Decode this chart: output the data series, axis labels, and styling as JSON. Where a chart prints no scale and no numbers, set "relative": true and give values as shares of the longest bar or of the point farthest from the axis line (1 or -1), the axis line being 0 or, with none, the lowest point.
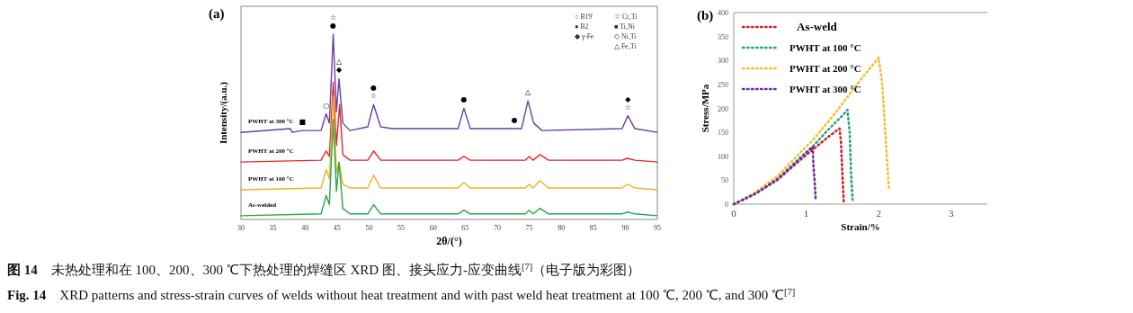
{
  "chart_data": [
    {
      "type": "line",
      "title": "(a)",
      "xlabel": "2θ/(°)",
      "ylabel": "Intensity/(a.u.)",
      "relative": true,
      "xlim": [
        30,
        95
      ],
      "xticks": [
        30,
        35,
        40,
        45,
        50,
        55,
        60,
        65,
        70,
        75,
        80,
        85,
        90,
        95
      ],
      "line_style": "solid",
      "marker": "none",
      "series": [
        {
          "name": "PWHT at 300 °C",
          "color": "#6a3fa0",
          "x": [
            30,
            37.7,
            38,
            39.6,
            42.5,
            43.3,
            43.8,
            44.4,
            44.9,
            45.3,
            45.9,
            47,
            49.8,
            50.7,
            51.8,
            53.6,
            63.9,
            64.8,
            65.8,
            72.7,
            73.8,
            74.8,
            75.7,
            77,
            89.5,
            90.4,
            91.5,
            95
          ],
          "values": [
            0.47,
            0.49,
            0.47,
            0.48,
            0.48,
            0.57,
            0.52,
            1.0,
            0.58,
            0.76,
            0.52,
            0.48,
            0.5,
            0.62,
            0.5,
            0.49,
            0.49,
            0.6,
            0.49,
            0.49,
            0.49,
            0.64,
            0.52,
            0.48,
            0.49,
            0.56,
            0.49,
            0.47
          ]
        },
        {
          "name": "PWHT at 200 °C",
          "color": "#e8262b",
          "x": [
            30,
            42.5,
            43.3,
            43.8,
            44.4,
            44.9,
            45.4,
            45.9,
            47,
            49.8,
            50.7,
            51.8,
            63.9,
            64.8,
            65.8,
            74.4,
            75,
            75.6,
            76.7,
            78,
            89.5,
            90.3,
            91.5,
            95
          ],
          "values": [
            0.31,
            0.32,
            0.37,
            0.34,
            0.74,
            0.4,
            0.62,
            0.35,
            0.32,
            0.32,
            0.37,
            0.32,
            0.32,
            0.34,
            0.32,
            0.32,
            0.34,
            0.32,
            0.35,
            0.32,
            0.32,
            0.33,
            0.32,
            0.31
          ]
        },
        {
          "name": "PWHT at 100 °C",
          "color": "#f5b022",
          "x": [
            30,
            42.5,
            43.3,
            43.8,
            44.4,
            44.9,
            45.3,
            45.9,
            47,
            49.8,
            50.7,
            51.8,
            63.9,
            64.8,
            65.8,
            74.4,
            75,
            75.6,
            76.7,
            78,
            89.5,
            90.3,
            91.5,
            95
          ],
          "values": [
            0.16,
            0.17,
            0.27,
            0.22,
            0.67,
            0.25,
            0.31,
            0.19,
            0.17,
            0.17,
            0.24,
            0.17,
            0.17,
            0.2,
            0.17,
            0.17,
            0.19,
            0.17,
            0.21,
            0.17,
            0.17,
            0.19,
            0.17,
            0.16
          ]
        },
        {
          "name": "As-welded",
          "color": "#2aa84a",
          "x": [
            30,
            42.5,
            43.3,
            43.8,
            44.4,
            44.9,
            45.3,
            45.9,
            47,
            49.8,
            50.7,
            51.8,
            63.9,
            64.8,
            65.8,
            74.4,
            75,
            75.6,
            76.7,
            78,
            89.5,
            90.3,
            91.5,
            95
          ],
          "values": [
            0.02,
            0.03,
            0.13,
            0.08,
            0.54,
            0.15,
            0.31,
            0.06,
            0.03,
            0.03,
            0.08,
            0.03,
            0.03,
            0.05,
            0.03,
            0.03,
            0.05,
            0.03,
            0.06,
            0.03,
            0.03,
            0.04,
            0.03,
            0.02
          ]
        }
      ],
      "annotations": [
        {
          "text": "☆",
          "x": 44.4,
          "y": 1.0
        },
        {
          "text": "●",
          "x": 44.4,
          "y": 1.0
        },
        {
          "text": "△",
          "x": 45.3,
          "y": 0.76
        },
        {
          "text": "◆",
          "x": 45.3,
          "y": 0.76
        },
        {
          "text": "○",
          "x": 43.3,
          "y": 0.57
        },
        {
          "text": "■",
          "x": 39.6,
          "y": 0.48
        },
        {
          "text": "●",
          "x": 50.7,
          "y": 0.62
        },
        {
          "text": "☆",
          "x": 50.7,
          "y": 0.62
        },
        {
          "text": "●",
          "x": 64.8,
          "y": 0.6
        },
        {
          "text": "●",
          "x": 72.7,
          "y": 0.49
        },
        {
          "text": "△",
          "x": 74.8,
          "y": 0.64
        },
        {
          "text": "◆",
          "x": 90.4,
          "y": 0.56
        },
        {
          "text": "☆",
          "x": 90.4,
          "y": 0.56
        },
        "○ B19′",
        "● B2",
        "◆ γ-Fe",
        "☆ Cr₂Ti",
        "■ Ti₂Ni",
        "◇ Ni₃Ti",
        "△ Fe₂Ti"
      ]
    },
    {
      "type": "line",
      "title": "(b)",
      "xlabel": "Strain/%",
      "ylabel": "Stress/MPa",
      "xlim": [
        0,
        3.5
      ],
      "xticks": [
        0,
        1,
        2,
        3
      ],
      "ylim": [
        0,
        400
      ],
      "yticks": [
        0,
        50,
        100,
        150,
        200,
        250,
        300,
        350,
        400
      ],
      "line_style": "dotted",
      "marker": "none",
      "legend": "top left",
      "series": [
        {
          "name": "As-weld",
          "color": "#d4202a",
          "x": [
            0,
            0.3,
            0.6,
            0.9,
            1.1,
            1.3,
            1.46,
            1.48,
            1.5,
            1.52
          ],
          "values": [
            0,
            22,
            50,
            90,
            115,
            140,
            158,
            130,
            60,
            0
          ]
        },
        {
          "name": "PWHT at 100 °C",
          "color": "#2aa676",
          "x": [
            0,
            0.3,
            0.6,
            0.9,
            1.1,
            1.3,
            1.5,
            1.57,
            1.6,
            1.62,
            1.64
          ],
          "values": [
            0,
            22,
            52,
            95,
            122,
            155,
            185,
            197,
            150,
            60,
            9
          ]
        },
        {
          "name": "PWHT at 200 °C",
          "color": "#f2c12e",
          "x": [
            0,
            0.3,
            0.6,
            0.9,
            1.1,
            1.4,
            1.7,
            2.0,
            2.05,
            2.1,
            2.14
          ],
          "values": [
            0,
            25,
            58,
            105,
            135,
            190,
            250,
            306,
            250,
            130,
            34
          ]
        },
        {
          "name": "PWHT at 300 °C",
          "color": "#6b2fa0",
          "x": [
            0,
            0.3,
            0.6,
            0.9,
            1.09,
            1.1,
            1.12,
            1.13
          ],
          "values": [
            0,
            22,
            52,
            92,
            120,
            80,
            40,
            10
          ]
        }
      ],
      "annotations": [
        "**图 14**　未热处理和在 100、200、300 ℃下热处理的焊缝区 XRD 图、接头应力-应变曲线$^{[7]}$（电子版为彩图）",
        "**Fig. 14**　XRD patterns and stress-strain curves of welds without heat treatment and with past weld heat treatment at 100 ℃, 200 ℃, and 300 ℃$^{[7]}$"
      ]
    }
  ]
}
